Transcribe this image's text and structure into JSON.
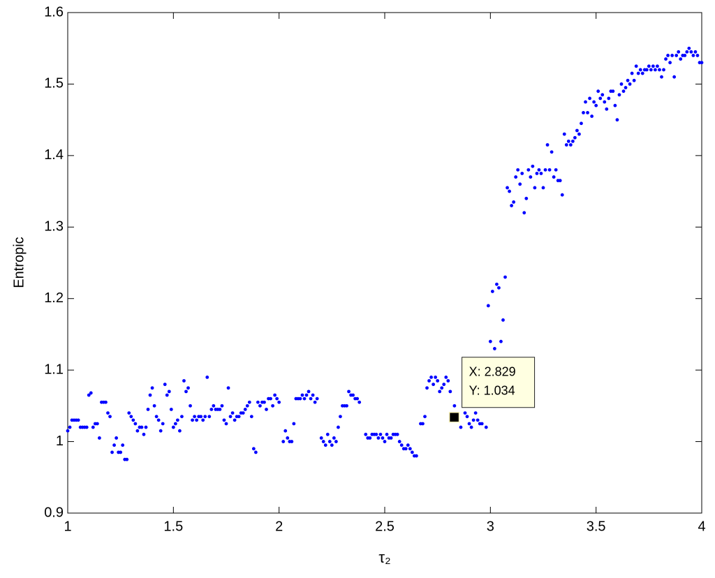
{
  "chart_data": {
    "type": "scatter",
    "x_label": "τ₂",
    "y_label": "Entropic",
    "color": "#0000ff",
    "xlim": [
      1,
      4
    ],
    "xticks": [
      1,
      1.5,
      2,
      2.5,
      3,
      3.5,
      4
    ],
    "ylim": [
      0.9,
      1.6
    ],
    "yticks": [
      0.9,
      1,
      1.1,
      1.2,
      1.3,
      1.4,
      1.5,
      1.6
    ],
    "x": [
      1.0,
      1.01,
      1.02,
      1.03,
      1.04,
      1.05,
      1.06,
      1.07,
      1.08,
      1.09,
      1.1,
      1.11,
      1.12,
      1.13,
      1.14,
      1.15,
      1.16,
      1.17,
      1.18,
      1.19,
      1.2,
      1.21,
      1.22,
      1.23,
      1.24,
      1.25,
      1.26,
      1.27,
      1.28,
      1.29,
      1.3,
      1.31,
      1.32,
      1.33,
      1.34,
      1.35,
      1.36,
      1.37,
      1.38,
      1.39,
      1.4,
      1.41,
      1.42,
      1.43,
      1.44,
      1.45,
      1.46,
      1.47,
      1.48,
      1.49,
      1.5,
      1.51,
      1.52,
      1.53,
      1.54,
      1.55,
      1.56,
      1.57,
      1.58,
      1.59,
      1.6,
      1.61,
      1.62,
      1.63,
      1.64,
      1.65,
      1.66,
      1.67,
      1.68,
      1.69,
      1.7,
      1.71,
      1.72,
      1.73,
      1.74,
      1.75,
      1.76,
      1.77,
      1.78,
      1.79,
      1.8,
      1.81,
      1.82,
      1.83,
      1.84,
      1.85,
      1.86,
      1.87,
      1.88,
      1.89,
      1.9,
      1.91,
      1.92,
      1.93,
      1.94,
      1.95,
      1.96,
      1.97,
      1.98,
      1.99,
      2.0,
      2.02,
      2.03,
      2.04,
      2.05,
      2.06,
      2.07,
      2.08,
      2.09,
      2.1,
      2.11,
      2.12,
      2.13,
      2.14,
      2.15,
      2.16,
      2.17,
      2.18,
      2.2,
      2.21,
      2.22,
      2.23,
      2.24,
      2.25,
      2.26,
      2.27,
      2.28,
      2.29,
      2.3,
      2.31,
      2.32,
      2.33,
      2.34,
      2.35,
      2.36,
      2.37,
      2.38,
      2.41,
      2.42,
      2.43,
      2.44,
      2.45,
      2.46,
      2.47,
      2.48,
      2.49,
      2.5,
      2.51,
      2.52,
      2.53,
      2.54,
      2.55,
      2.56,
      2.57,
      2.58,
      2.59,
      2.6,
      2.61,
      2.62,
      2.63,
      2.64,
      2.65,
      2.67,
      2.68,
      2.69,
      2.7,
      2.71,
      2.72,
      2.73,
      2.74,
      2.75,
      2.76,
      2.77,
      2.78,
      2.79,
      2.8,
      2.81,
      2.83,
      2.86,
      2.88,
      2.89,
      2.9,
      2.91,
      2.92,
      2.93,
      2.94,
      2.95,
      2.96,
      2.97,
      2.98,
      2.99,
      3.0,
      3.01,
      3.02,
      3.03,
      3.04,
      3.05,
      3.06,
      3.07,
      3.08,
      3.09,
      3.1,
      3.11,
      3.12,
      3.13,
      3.14,
      3.15,
      3.16,
      3.17,
      3.18,
      3.19,
      3.2,
      3.21,
      3.22,
      3.23,
      3.24,
      3.25,
      3.26,
      3.27,
      3.28,
      3.29,
      3.3,
      3.31,
      3.32,
      3.33,
      3.34,
      3.35,
      3.36,
      3.37,
      3.38,
      3.39,
      3.4,
      3.41,
      3.42,
      3.43,
      3.44,
      3.45,
      3.46,
      3.47,
      3.48,
      3.49,
      3.5,
      3.51,
      3.52,
      3.53,
      3.54,
      3.55,
      3.56,
      3.57,
      3.58,
      3.59,
      3.6,
      3.61,
      3.62,
      3.63,
      3.64,
      3.65,
      3.66,
      3.67,
      3.68,
      3.69,
      3.7,
      3.71,
      3.72,
      3.73,
      3.74,
      3.75,
      3.76,
      3.77,
      3.78,
      3.79,
      3.8,
      3.81,
      3.82,
      3.83,
      3.84,
      3.85,
      3.86,
      3.87,
      3.88,
      3.89,
      3.9,
      3.91,
      3.92,
      3.93,
      3.94,
      3.95,
      3.96,
      3.97,
      3.98,
      3.99,
      4.0
    ],
    "values": [
      1.015,
      1.02,
      1.03,
      1.03,
      1.03,
      1.03,
      1.02,
      1.02,
      1.02,
      1.02,
      1.065,
      1.068,
      1.02,
      1.025,
      1.025,
      1.005,
      1.055,
      1.055,
      1.055,
      1.04,
      1.035,
      0.985,
      0.995,
      1.005,
      0.985,
      0.985,
      0.995,
      0.975,
      0.975,
      1.04,
      1.035,
      1.03,
      1.025,
      1.015,
      1.02,
      1.02,
      1.01,
      1.02,
      1.045,
      1.065,
      1.075,
      1.05,
      1.035,
      1.03,
      1.015,
      1.025,
      1.08,
      1.065,
      1.07,
      1.045,
      1.02,
      1.025,
      1.03,
      1.015,
      1.035,
      1.085,
      1.07,
      1.075,
      1.05,
      1.03,
      1.035,
      1.03,
      1.035,
      1.035,
      1.03,
      1.035,
      1.09,
      1.035,
      1.045,
      1.05,
      1.045,
      1.045,
      1.045,
      1.05,
      1.03,
      1.025,
      1.075,
      1.035,
      1.04,
      1.03,
      1.035,
      1.035,
      1.04,
      1.04,
      1.045,
      1.05,
      1.055,
      1.035,
      0.99,
      0.985,
      1.055,
      1.05,
      1.055,
      1.055,
      1.045,
      1.06,
      1.06,
      1.05,
      1.065,
      1.06,
      1.055,
      1.0,
      1.015,
      1.005,
      1.0,
      1.0,
      1.025,
      1.06,
      1.06,
      1.06,
      1.065,
      1.06,
      1.065,
      1.07,
      1.06,
      1.065,
      1.055,
      1.06,
      1.005,
      1.0,
      0.995,
      1.01,
      1.0,
      0.995,
      1.005,
      1.0,
      1.02,
      1.035,
      1.05,
      1.05,
      1.05,
      1.07,
      1.065,
      1.065,
      1.06,
      1.06,
      1.055,
      1.01,
      1.005,
      1.005,
      1.01,
      1.01,
      1.01,
      1.005,
      1.01,
      1.005,
      1.0,
      1.01,
      1.005,
      1.005,
      1.01,
      1.01,
      1.01,
      1.0,
      0.995,
      0.99,
      0.99,
      0.995,
      0.99,
      0.985,
      0.98,
      0.98,
      1.025,
      1.025,
      1.035,
      1.075,
      1.085,
      1.09,
      1.08,
      1.09,
      1.085,
      1.07,
      1.075,
      1.08,
      1.09,
      1.085,
      1.07,
      1.05,
      1.02,
      1.04,
      1.035,
      1.025,
      1.02,
      1.03,
      1.04,
      1.03,
      1.025,
      1.025,
      1.055,
      1.02,
      1.19,
      1.14,
      1.21,
      1.13,
      1.22,
      1.215,
      1.14,
      1.17,
      1.23,
      1.355,
      1.35,
      1.33,
      1.335,
      1.37,
      1.38,
      1.36,
      1.375,
      1.32,
      1.34,
      1.38,
      1.37,
      1.385,
      1.355,
      1.375,
      1.38,
      1.375,
      1.355,
      1.38,
      1.415,
      1.38,
      1.405,
      1.37,
      1.38,
      1.365,
      1.365,
      1.345,
      1.43,
      1.415,
      1.42,
      1.415,
      1.42,
      1.425,
      1.435,
      1.43,
      1.445,
      1.46,
      1.475,
      1.46,
      1.48,
      1.455,
      1.475,
      1.47,
      1.49,
      1.48,
      1.485,
      1.475,
      1.465,
      1.48,
      1.49,
      1.49,
      1.47,
      1.45,
      1.485,
      1.5,
      1.49,
      1.495,
      1.505,
      1.5,
      1.515,
      1.505,
      1.525,
      1.515,
      1.52,
      1.515,
      1.52,
      1.52,
      1.525,
      1.52,
      1.525,
      1.52,
      1.525,
      1.52,
      1.51,
      1.52,
      1.535,
      1.54,
      1.53,
      1.54,
      1.51,
      1.54,
      1.545,
      1.535,
      1.54,
      1.54,
      1.545,
      1.55,
      1.545,
      1.54,
      1.545,
      1.54,
      1.53,
      1.53
    ],
    "datatip": {
      "x": 2.829,
      "y": 1.034,
      "x_label": "X: 2.829",
      "y_label": "Y: 1.034"
    }
  }
}
